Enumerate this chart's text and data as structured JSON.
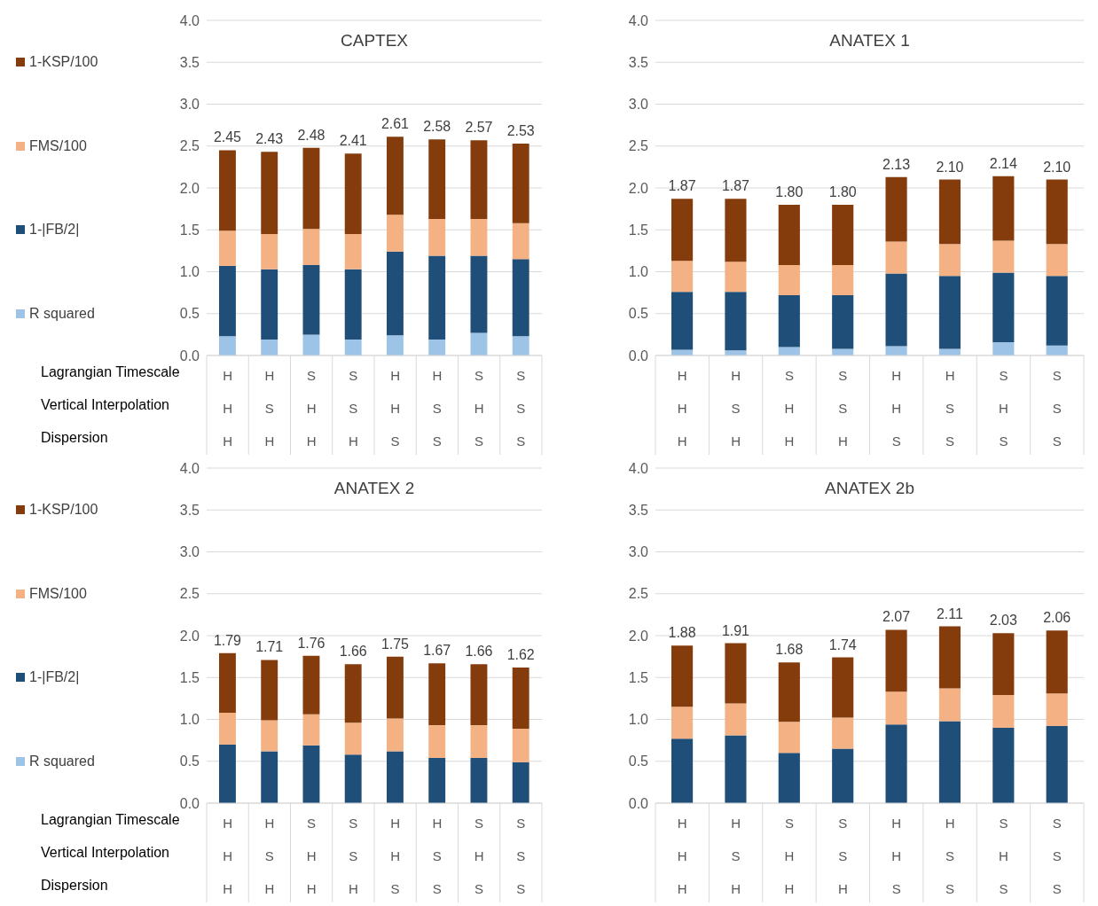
{
  "chart_data": [
    {
      "type": "bar",
      "title": "CAPTEX",
      "stacked": true,
      "grid": "y",
      "legend": "left",
      "data_labels": false,
      "xlabel": "Lagrangian Timescale\nVertical Interpolation\nDispersion",
      "categories": [
        "H\nH\nH",
        "H\nS\nH",
        "S\nH\nH",
        "S\nS\nH",
        "H\nH\nS",
        "H\nS\nS",
        "S\nH\nS",
        "S\nS\nS"
      ],
      "ylim": [
        0,
        4
      ],
      "yticks": [
        {
          "value": 0,
          "label": "0.0"
        },
        {
          "value": 0.5,
          "label": "0.5"
        },
        {
          "value": 1,
          "label": "1.0"
        },
        {
          "value": 1.5,
          "label": "1.5"
        },
        {
          "value": 2,
          "label": "2.0"
        },
        {
          "value": 2.5,
          "label": "2.5"
        },
        {
          "value": 3,
          "label": "3.0"
        },
        {
          "value": 3.5,
          "label": "3.5"
        },
        {
          "value": 4,
          "label": "4.0"
        }
      ],
      "totals": [
        "2.45",
        "2.43",
        "2.48",
        "2.41",
        "2.61",
        "2.58",
        "2.57",
        "2.53"
      ],
      "series": [
        {
          "name": "R squared",
          "color": "#9dc3e6",
          "values": [
            0.23,
            0.19,
            0.25,
            0.19,
            0.24,
            0.19,
            0.27,
            0.23
          ]
        },
        {
          "name": "1-|FB/2|",
          "color": "#1f4e79",
          "values": [
            0.84,
            0.84,
            0.83,
            0.84,
            1.0,
            1.0,
            0.92,
            0.92
          ]
        },
        {
          "name": "FMS/100",
          "color": "#f4b183",
          "values": [
            0.42,
            0.42,
            0.43,
            0.42,
            0.44,
            0.44,
            0.44,
            0.43
          ]
        },
        {
          "name": "1-KSP/100",
          "color": "#843c0c",
          "values": [
            0.96,
            0.98,
            0.97,
            0.96,
            0.93,
            0.95,
            0.94,
            0.95
          ]
        }
      ]
    },
    {
      "type": "bar",
      "title": "ANATEX 1",
      "stacked": true,
      "grid": "y",
      "categories": [
        "H\nH\nH",
        "H\nS\nH",
        "S\nH\nH",
        "S\nS\nH",
        "H\nH\nS",
        "H\nS\nS",
        "S\nH\nS",
        "S\nS\nS"
      ],
      "ylim": [
        0,
        4
      ],
      "yticks": [
        {
          "value": 0,
          "label": "0.0"
        },
        {
          "value": 0.5,
          "label": "0.5"
        },
        {
          "value": 1,
          "label": "1.0"
        },
        {
          "value": 1.5,
          "label": "1.5"
        },
        {
          "value": 2,
          "label": "2.0"
        },
        {
          "value": 2.5,
          "label": "2.5"
        },
        {
          "value": 3,
          "label": "3.0"
        },
        {
          "value": 3.5,
          "label": "3.5"
        },
        {
          "value": 4,
          "label": "4.0"
        }
      ],
      "totals": [
        "1.87",
        "1.87",
        "1.80",
        "1.80",
        "2.13",
        "2.10",
        "2.14",
        "2.10"
      ],
      "series": [
        {
          "color": "#9dc3e6",
          "values": [
            0.07,
            0.06,
            0.1,
            0.08,
            0.11,
            0.08,
            0.16,
            0.12
          ]
        },
        {
          "color": "#1f4e79",
          "values": [
            0.69,
            0.7,
            0.62,
            0.64,
            0.87,
            0.87,
            0.83,
            0.83
          ]
        },
        {
          "color": "#f4b183",
          "values": [
            0.37,
            0.36,
            0.36,
            0.36,
            0.38,
            0.38,
            0.38,
            0.38
          ]
        },
        {
          "color": "#843c0c",
          "values": [
            0.74,
            0.75,
            0.72,
            0.72,
            0.77,
            0.77,
            0.77,
            0.77
          ]
        }
      ]
    },
    {
      "type": "bar",
      "title": "ANATEX 2",
      "stacked": true,
      "grid": "y",
      "legend": "left",
      "xlabel": "Lagrangian Timescale\nVertical Interpolation\nDispersion",
      "categories": [
        "H\nH\nH",
        "H\nS\nH",
        "S\nH\nH",
        "S\nS\nH",
        "H\nH\nS",
        "H\nS\nS",
        "S\nH\nS",
        "S\nS\nS"
      ],
      "ylim": [
        0,
        4
      ],
      "yticks": [
        {
          "value": 0,
          "label": "0.0"
        },
        {
          "value": 0.5,
          "label": "0.5"
        },
        {
          "value": 1,
          "label": "1.0"
        },
        {
          "value": 1.5,
          "label": "1.5"
        },
        {
          "value": 2,
          "label": "2.0"
        },
        {
          "value": 2.5,
          "label": "2.5"
        },
        {
          "value": 3,
          "label": "3.0"
        },
        {
          "value": 3.5,
          "label": "3.5"
        },
        {
          "value": 4,
          "label": "4.0"
        }
      ],
      "totals": [
        "1.79",
        "1.71",
        "1.76",
        "1.66",
        "1.75",
        "1.67",
        "1.66",
        "1.62"
      ],
      "series": [
        {
          "name": "R squared",
          "color": "#9dc3e6",
          "values": [
            0,
            0,
            0,
            0,
            0,
            0,
            0,
            0
          ]
        },
        {
          "name": "1-|FB/2|",
          "color": "#1f4e79",
          "values": [
            0.7,
            0.62,
            0.69,
            0.58,
            0.62,
            0.54,
            0.54,
            0.49
          ]
        },
        {
          "name": "FMS/100",
          "color": "#f4b183",
          "values": [
            0.38,
            0.37,
            0.37,
            0.38,
            0.39,
            0.39,
            0.39,
            0.4
          ]
        },
        {
          "name": "1-KSP/100",
          "color": "#843c0c",
          "values": [
            0.71,
            0.72,
            0.7,
            0.7,
            0.74,
            0.74,
            0.73,
            0.73
          ]
        }
      ]
    },
    {
      "type": "bar",
      "title": "ANATEX 2b",
      "stacked": true,
      "grid": "y",
      "categories": [
        "H\nH\nH",
        "H\nS\nH",
        "S\nH\nH",
        "S\nS\nH",
        "H\nH\nS",
        "H\nS\nS",
        "S\nH\nS",
        "S\nS\nS"
      ],
      "ylim": [
        0,
        4
      ],
      "yticks": [
        {
          "value": 0,
          "label": "0.0"
        },
        {
          "value": 0.5,
          "label": "0.5"
        },
        {
          "value": 1,
          "label": "1.0"
        },
        {
          "value": 1.5,
          "label": "1.5"
        },
        {
          "value": 2,
          "label": "2.0"
        },
        {
          "value": 2.5,
          "label": "2.5"
        },
        {
          "value": 3,
          "label": "3.0"
        },
        {
          "value": 3.5,
          "label": "3.5"
        },
        {
          "value": 4,
          "label": "4.0"
        }
      ],
      "totals": [
        "1.88",
        "1.91",
        "1.68",
        "1.74",
        "2.07",
        "2.11",
        "2.03",
        "2.06"
      ],
      "series": [
        {
          "color": "#9dc3e6",
          "values": [
            0,
            0,
            0,
            0,
            0,
            0,
            0,
            0
          ]
        },
        {
          "color": "#1f4e79",
          "values": [
            0.77,
            0.81,
            0.6,
            0.65,
            0.94,
            0.98,
            0.9,
            0.92
          ]
        },
        {
          "color": "#f4b183",
          "values": [
            0.38,
            0.38,
            0.37,
            0.37,
            0.39,
            0.39,
            0.39,
            0.39
          ]
        },
        {
          "color": "#843c0c",
          "values": [
            0.73,
            0.72,
            0.71,
            0.72,
            0.74,
            0.74,
            0.74,
            0.75
          ]
        }
      ]
    }
  ]
}
